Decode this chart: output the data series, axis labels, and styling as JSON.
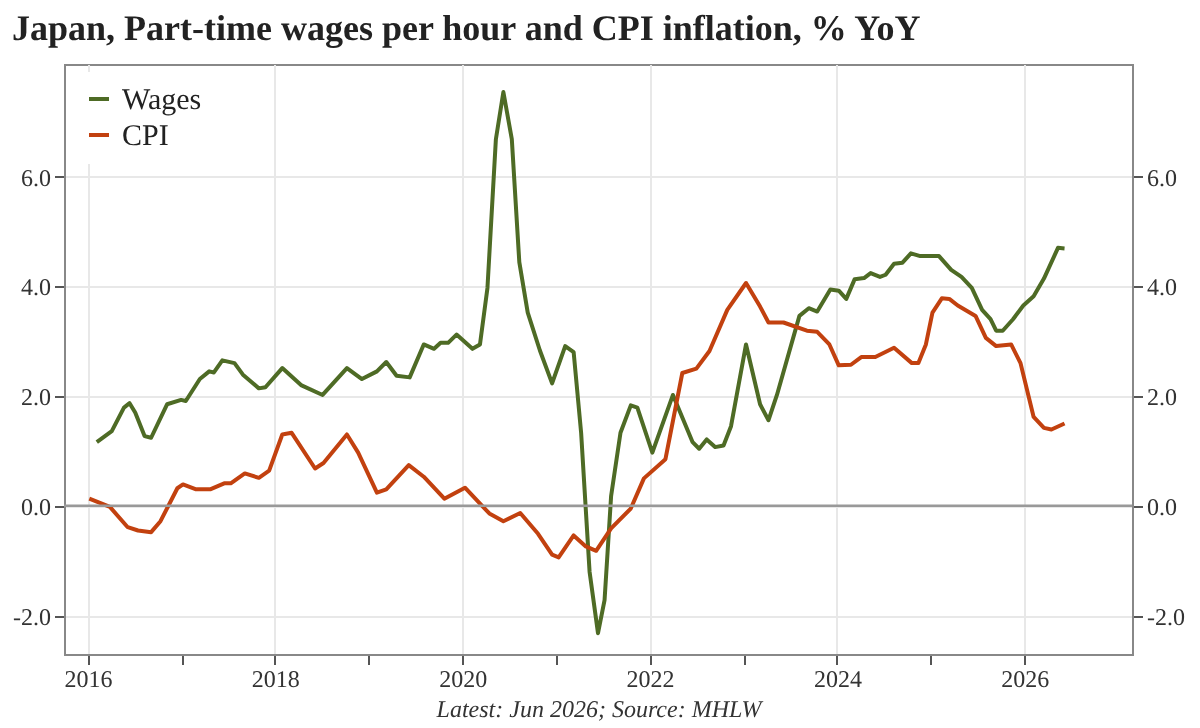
{
  "chart_data": {
    "type": "line",
    "title": "Japan, Part-time wages per hour and CPI inflation, % YoY",
    "annotations": [
      "Latest: Jun 2026; Source: MHLW"
    ],
    "series": [
      {
        "name": "Wages",
        "color": "#4e6b25",
        "x": [
          2016.1,
          2016.26,
          2016.39,
          2016.45,
          2016.51,
          2016.61,
          2016.68,
          2016.85,
          2017.0,
          2017.05,
          2017.2,
          2017.3,
          2017.35,
          2017.44,
          2017.57,
          2017.66,
          2017.83,
          2017.9,
          2018.08,
          2018.28,
          2018.51,
          2018.77,
          2018.93,
          2019.09,
          2019.19,
          2019.3,
          2019.44,
          2019.59,
          2019.7,
          2019.77,
          2019.85,
          2019.94,
          2020.11,
          2020.19,
          2020.27,
          2020.36,
          2020.44,
          2020.53,
          2020.61,
          2020.7,
          2020.83,
          2020.96,
          2021.1,
          2021.19,
          2021.27,
          2021.36,
          2021.45,
          2021.52,
          2021.59,
          2021.69,
          2021.8,
          2021.87,
          2022.03,
          2022.25,
          2022.46,
          2022.53,
          2022.61,
          2022.7,
          2022.79,
          2022.87,
          2023.03,
          2023.18,
          2023.27,
          2023.36,
          2023.6,
          2023.7,
          2023.79,
          2023.93,
          2024.02,
          2024.1,
          2024.19,
          2024.29,
          2024.36,
          2024.46,
          2024.52,
          2024.61,
          2024.7,
          2024.79,
          2024.89,
          2025.09,
          2025.22,
          2025.33,
          2025.44,
          2025.55,
          2025.64,
          2025.7,
          2025.77,
          2025.88,
          2025.99,
          2026.1,
          2026.21,
          2026.36,
          2026.43
        ],
        "values": [
          1.16,
          1.36,
          1.79,
          1.87,
          1.7,
          1.27,
          1.24,
          1.85,
          1.93,
          1.91,
          2.31,
          2.45,
          2.43,
          2.65,
          2.6,
          2.39,
          2.14,
          2.16,
          2.51,
          2.2,
          2.02,
          2.51,
          2.31,
          2.45,
          2.62,
          2.37,
          2.34,
          2.94,
          2.86,
          2.97,
          2.97,
          3.12,
          2.86,
          2.94,
          3.97,
          6.68,
          7.54,
          6.68,
          4.44,
          3.52,
          2.83,
          2.23,
          2.91,
          2.8,
          1.33,
          -1.2,
          -2.32,
          -1.72,
          0.18,
          1.33,
          1.83,
          1.79,
          0.97,
          2.02,
          1.16,
          1.04,
          1.21,
          1.07,
          1.1,
          1.45,
          2.94,
          1.85,
          1.56,
          2.02,
          3.46,
          3.6,
          3.54,
          3.94,
          3.92,
          3.77,
          4.13,
          4.15,
          4.24,
          4.17,
          4.21,
          4.41,
          4.43,
          4.6,
          4.55,
          4.55,
          4.3,
          4.17,
          3.97,
          3.57,
          3.4,
          3.19,
          3.19,
          3.4,
          3.65,
          3.82,
          4.14,
          4.7,
          4.69
        ]
      },
      {
        "name": "CPI",
        "color": "#c2410f",
        "x": [
          2016.02,
          2016.24,
          2016.43,
          2016.54,
          2016.68,
          2016.78,
          2016.96,
          2017.02,
          2017.16,
          2017.31,
          2017.46,
          2017.53,
          2017.68,
          2017.83,
          2017.94,
          2018.08,
          2018.18,
          2018.43,
          2018.52,
          2018.77,
          2018.89,
          2019.09,
          2019.19,
          2019.43,
          2019.59,
          2019.81,
          2020.03,
          2020.29,
          2020.44,
          2020.62,
          2020.81,
          2020.96,
          2021.03,
          2021.19,
          2021.32,
          2021.43,
          2021.59,
          2021.8,
          2021.94,
          2022.17,
          2022.35,
          2022.5,
          2022.64,
          2022.83,
          2023.03,
          2023.18,
          2023.27,
          2023.43,
          2023.68,
          2023.79,
          2023.92,
          2024.02,
          2024.15,
          2024.26,
          2024.41,
          2024.61,
          2024.8,
          2024.87,
          2024.95,
          2025.02,
          2025.12,
          2025.2,
          2025.29,
          2025.48,
          2025.59,
          2025.7,
          2025.86,
          2025.96,
          2026.1,
          2026.21,
          2026.29,
          2026.43
        ],
        "values": [
          0.13,
          -0.02,
          -0.39,
          -0.45,
          -0.48,
          -0.28,
          0.32,
          0.39,
          0.3,
          0.3,
          0.41,
          0.41,
          0.59,
          0.51,
          0.64,
          1.3,
          1.33,
          0.68,
          0.78,
          1.3,
          0.97,
          0.24,
          0.3,
          0.74,
          0.53,
          0.13,
          0.33,
          -0.14,
          -0.28,
          -0.13,
          -0.51,
          -0.89,
          -0.94,
          -0.54,
          -0.74,
          -0.82,
          -0.41,
          -0.05,
          0.5,
          0.85,
          2.42,
          2.5,
          2.82,
          3.57,
          4.06,
          3.63,
          3.34,
          3.34,
          3.19,
          3.17,
          2.94,
          2.56,
          2.57,
          2.71,
          2.71,
          2.88,
          2.6,
          2.6,
          2.94,
          3.52,
          3.78,
          3.77,
          3.65,
          3.46,
          3.06,
          2.91,
          2.94,
          2.6,
          1.62,
          1.42,
          1.39,
          1.5
        ]
      }
    ],
    "xlim": [
      2015.75,
      2027.15
    ],
    "xticks": [
      2016,
      {
        "value": 2017,
        "label": null
      },
      2018,
      {
        "value": 2019,
        "label": null
      },
      2020,
      {
        "value": 2021,
        "label": null
      },
      2022,
      {
        "value": 2023,
        "label": null
      },
      2024,
      {
        "value": 2025,
        "label": null
      },
      2026
    ],
    "ylim": [
      -2.7,
      8.05
    ],
    "yticks": [
      {
        "value": -2,
        "label": "-2.0"
      },
      {
        "value": 0,
        "label": "0.0"
      },
      {
        "value": 2,
        "label": "2.0"
      },
      {
        "value": 4,
        "label": "4.0"
      },
      {
        "value": 6,
        "label": "6.0"
      }
    ],
    "y2lim": [
      -2.7,
      8.05
    ],
    "y2ticks": [
      {
        "value": -2,
        "label": "-2.0"
      },
      {
        "value": 0,
        "label": "0.0"
      },
      {
        "value": 2,
        "label": "2.0"
      },
      {
        "value": 4,
        "label": "4.0"
      },
      {
        "value": 6,
        "label": "6.0"
      }
    ],
    "ref_lines": [
      {
        "axis": "y",
        "value": 0,
        "color": "#999999"
      }
    ],
    "grid": true,
    "legend": "top left",
    "marker": "none",
    "line_style": "solid"
  }
}
